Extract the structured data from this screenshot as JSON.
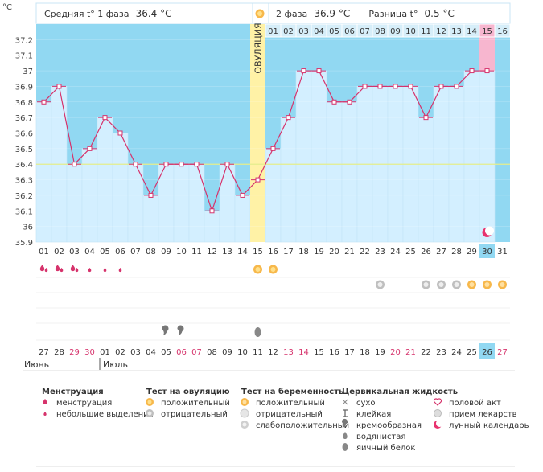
{
  "header": {
    "unit": "°C",
    "phase1_label": "Средняя t° 1 фаза",
    "phase1_value": "36.4 °C",
    "phase2_label": "2 фаза",
    "phase2_value": "36.9 °C",
    "diff_label": "Разница t°",
    "diff_value": "0.5 °C",
    "ovulation_label": "ОВУЛЯЦИЯ"
  },
  "chart_data": {
    "type": "line",
    "ylim": [
      35.9,
      37.3
    ],
    "yticks": [
      "37.2",
      "37.1",
      "37",
      "36.9",
      "36.8",
      "36.7",
      "36.6",
      "36.5",
      "36.4",
      "36.3",
      "36.2",
      "36.1",
      "36",
      "35.9"
    ],
    "x": [
      "01",
      "02",
      "03",
      "04",
      "05",
      "06",
      "07",
      "08",
      "09",
      "10",
      "11",
      "12",
      "13",
      "14",
      "15",
      "16",
      "17",
      "18",
      "19",
      "20",
      "21",
      "22",
      "23",
      "24",
      "25",
      "26",
      "27",
      "28",
      "29",
      "30",
      "31"
    ],
    "top_cycle_days": [
      "01",
      "02",
      "03",
      "04",
      "05",
      "06",
      "07",
      "08",
      "09",
      "10",
      "11",
      "12",
      "13",
      "14",
      "15",
      "16"
    ],
    "ovulation_day": "15",
    "coverline": 36.4,
    "phase1_avg": 36.4,
    "phase2_avg": 36.9,
    "series": [
      {
        "values": [
          36.8,
          36.9,
          36.4,
          36.5,
          36.7,
          36.6,
          36.4,
          36.2,
          36.4,
          36.4,
          36.4,
          36.1,
          36.4,
          36.2,
          36.3,
          36.5,
          36.7,
          37.0,
          37.0,
          36.8,
          36.8,
          36.9,
          36.9,
          36.9,
          36.9,
          36.7,
          36.9,
          36.9,
          37.0,
          37.0,
          null
        ]
      }
    ],
    "today_index": 29,
    "colors": {
      "line": "#d6336c",
      "bar": "#d3efff",
      "bar_border": "#c2e3f7",
      "area": "#91d8f2",
      "coverline": "#e4ee8c",
      "ovulation": "#fff2a6",
      "today": "#f7b6cf"
    }
  },
  "symbols": {
    "menstruation_heavy_days": [
      0,
      1,
      2
    ],
    "menstruation_light_days": [
      3,
      4,
      5
    ],
    "ovulation_test_positive_days": [
      14,
      15
    ],
    "pregnancy_test_negative_days": [
      22,
      25,
      26,
      27
    ],
    "pregnancy_test_positive_days": [
      28,
      29,
      30
    ],
    "creamy_days": [
      8,
      9
    ],
    "egg_white_days": [
      14
    ],
    "moon_day": 29
  },
  "calendar": {
    "dates": [
      "27",
      "28",
      "29",
      "30",
      "01",
      "02",
      "03",
      "04",
      "05",
      "06",
      "07",
      "08",
      "09",
      "10",
      "11",
      "12",
      "13",
      "14",
      "15",
      "16",
      "17",
      "18",
      "19",
      "20",
      "21",
      "22",
      "23",
      "24",
      "25",
      "26",
      "27"
    ],
    "weekend_indices": [
      2,
      3,
      9,
      10,
      16,
      17,
      23,
      24,
      30
    ],
    "today_index": 29,
    "month1": "Июнь",
    "month2": "Июль"
  },
  "legend": {
    "groups": [
      {
        "title": "Менструация",
        "items": [
          {
            "icon": "drop-heavy-icon",
            "label": "менструация"
          },
          {
            "icon": "drop-light-icon",
            "label": "небольшие выделения"
          }
        ]
      },
      {
        "title": "Тест на овуляцию",
        "items": [
          {
            "icon": "ovulation-positive-icon",
            "label": "положительный"
          },
          {
            "icon": "ovulation-negative-icon",
            "label": "отрицательный"
          }
        ]
      },
      {
        "title": "Тест на беременность",
        "items": [
          {
            "icon": "pregnancy-positive-icon",
            "label": "положительный"
          },
          {
            "icon": "pregnancy-negative-icon",
            "label": "отрицательный"
          },
          {
            "icon": "pregnancy-weak-icon",
            "label": "слабоположительный"
          }
        ]
      },
      {
        "title": "Цервикальная жидкость",
        "items": [
          {
            "icon": "dry-icon",
            "label": "сухо"
          },
          {
            "icon": "sticky-icon",
            "label": "клейкая"
          },
          {
            "icon": "creamy-icon",
            "label": "кремообразная"
          },
          {
            "icon": "watery-icon",
            "label": "водянистая"
          },
          {
            "icon": "egg-white-icon",
            "label": "яичный белок"
          }
        ]
      },
      {
        "title": "",
        "items": [
          {
            "icon": "intercourse-icon",
            "label": "половой акт"
          },
          {
            "icon": "medicine-icon",
            "label": "прием лекарств"
          },
          {
            "icon": "lunar-icon",
            "label": "лунный календарь"
          }
        ]
      }
    ]
  }
}
